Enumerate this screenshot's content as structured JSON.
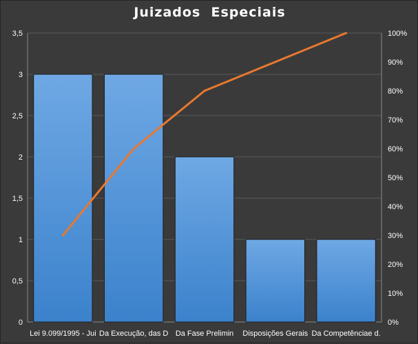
{
  "chart_data": {
    "type": "bar",
    "title": "Juizados  Especiais",
    "categories": [
      "Lei 9.099/1995 - Jui",
      "Da Execução, das D",
      "Da Fase Prelimin",
      "Disposições Gerais",
      "Da Competênciae d."
    ],
    "series": [
      {
        "type": "bar",
        "values": [
          3,
          3,
          2,
          1,
          1
        ]
      },
      {
        "type": "line",
        "axis": "right",
        "values": [
          30,
          60,
          80,
          90,
          100
        ]
      }
    ],
    "ylim": [
      0,
      3.5
    ],
    "y_ticks": [
      "0",
      "0,5",
      "1",
      "1,5",
      "2",
      "2,5",
      "3",
      "3,5"
    ],
    "y2lim": [
      0,
      100
    ],
    "y2_ticks": [
      "0%",
      "10%",
      "20%",
      "30%",
      "40%",
      "50%",
      "60%",
      "70%",
      "80%",
      "90%",
      "100%"
    ],
    "grid": true,
    "legend": "none",
    "colors": {
      "background": "#3a3a3a",
      "bar_top": "#6fa8e4",
      "bar_bottom": "#3b82cc",
      "bar_edge": "#1e1e1e",
      "line": "#e8782f",
      "grid": "#5a5a5a",
      "axis": "#8a8a8a",
      "text": "#ffffff"
    }
  }
}
